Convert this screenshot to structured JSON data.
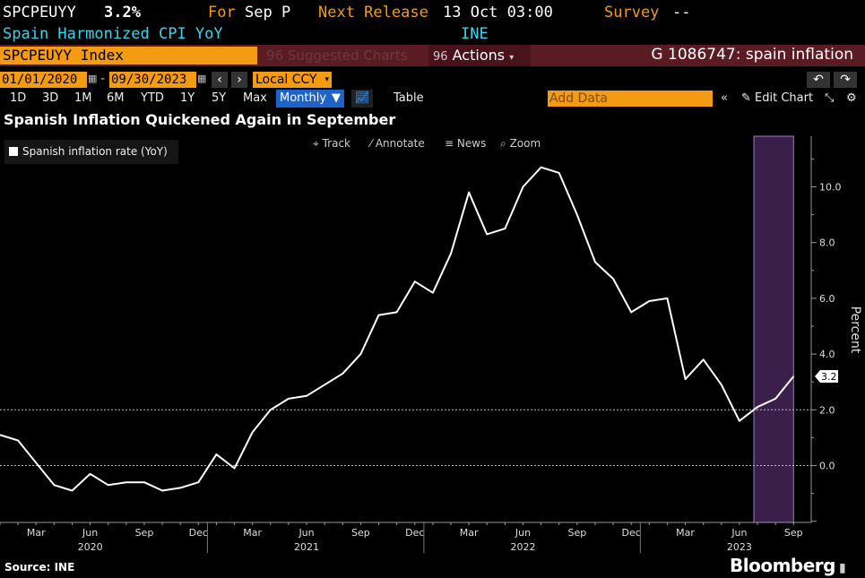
{
  "header": {
    "ticker": "SPCPEUYY",
    "value": "3.2%",
    "for_label": "For",
    "for_value": "Sep P",
    "next_release_label": "Next Release",
    "next_release_value": "13 Oct 03:00",
    "survey_label": "Survey",
    "survey_value": "--",
    "description": "Spain Harmonized CPI YoY",
    "source_short": "INE"
  },
  "toolbar": {
    "security": "SPCPEUYY Index",
    "suggested_charts": "Suggested Charts",
    "suggested_num": "96",
    "actions_num": "96",
    "actions": "Actions",
    "chart_id": "G 1086747: spain inflation"
  },
  "range": {
    "start": "01/01/2020",
    "end": "09/30/2023",
    "currency": "Local CCY"
  },
  "periods": [
    "1D",
    "3D",
    "1M",
    "6M",
    "YTD",
    "1Y",
    "5Y",
    "Max"
  ],
  "frequency": "Monthly",
  "table_label": "Table",
  "add_data_placeholder": "Add Data",
  "edit_chart": "Edit Chart",
  "chart_tools": {
    "track": "Track",
    "annotate": "Annotate",
    "news": "News",
    "zoom": "Zoom"
  },
  "colors": {
    "accent_orange": "#f49a13",
    "bar_red": "#5a1b22",
    "highlight": "#3a1f4a",
    "line": "#ffffff"
  },
  "chart_data": {
    "type": "line",
    "title": "Spanish Inflation Quickened Again in September",
    "ylabel": "Percent",
    "ylim": [
      -2.0,
      11.5
    ],
    "yticks": [
      0.0,
      2.0,
      4.0,
      6.0,
      8.0,
      10.0
    ],
    "ytick_labels": [
      "0.0",
      "2.0",
      "4.0",
      "6.0",
      "8.0",
      "10.0"
    ],
    "x_month_ticks": [
      "Mar",
      "Jun",
      "Sep",
      "Dec",
      "Mar",
      "Jun",
      "Sep",
      "Dec",
      "Mar",
      "Jun",
      "Sep",
      "Dec",
      "Mar",
      "Jun",
      "Sep"
    ],
    "x_year_labels": [
      "2020",
      "2021",
      "2022",
      "2023"
    ],
    "reference_lines": [
      2.0,
      0.0
    ],
    "highlight_period": [
      "2023-07",
      "2023-09"
    ],
    "last_value_label": "3.2",
    "series": [
      {
        "name": "Spanish inflation rate (YoY)",
        "x": [
          "2020-01",
          "2020-02",
          "2020-03",
          "2020-04",
          "2020-05",
          "2020-06",
          "2020-07",
          "2020-08",
          "2020-09",
          "2020-10",
          "2020-11",
          "2020-12",
          "2021-01",
          "2021-02",
          "2021-03",
          "2021-04",
          "2021-05",
          "2021-06",
          "2021-07",
          "2021-08",
          "2021-09",
          "2021-10",
          "2021-11",
          "2021-12",
          "2022-01",
          "2022-02",
          "2022-03",
          "2022-04",
          "2022-05",
          "2022-06",
          "2022-07",
          "2022-08",
          "2022-09",
          "2022-10",
          "2022-11",
          "2022-12",
          "2023-01",
          "2023-02",
          "2023-03",
          "2023-04",
          "2023-05",
          "2023-06",
          "2023-07",
          "2023-08",
          "2023-09"
        ],
        "values": [
          1.1,
          0.9,
          0.1,
          -0.7,
          -0.9,
          -0.3,
          -0.7,
          -0.6,
          -0.6,
          -0.9,
          -0.8,
          -0.6,
          0.4,
          -0.1,
          1.2,
          2.0,
          2.4,
          2.5,
          2.9,
          3.3,
          4.0,
          5.4,
          5.5,
          6.6,
          6.2,
          7.6,
          9.8,
          8.3,
          8.5,
          10.0,
          10.7,
          10.5,
          9.0,
          7.3,
          6.7,
          5.5,
          5.9,
          6.0,
          3.1,
          3.8,
          2.9,
          1.6,
          2.1,
          2.4,
          3.2
        ]
      }
    ]
  },
  "legend": {
    "label": "Spanish inflation rate (YoY)"
  },
  "footer": {
    "source": "Source: INE",
    "brand": "Bloomberg"
  }
}
